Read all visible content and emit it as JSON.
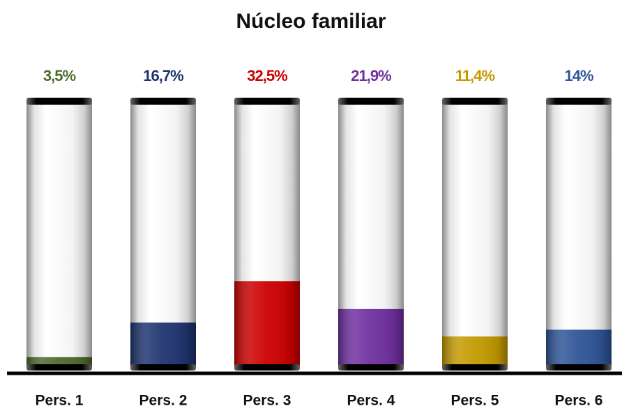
{
  "chart_data": {
    "type": "bar",
    "title": "Núcleo familiar",
    "categories": [
      "Pers. 1",
      "Pers. 2",
      "Pers. 3",
      "Pers. 4",
      "Pers. 5",
      "Pers. 6"
    ],
    "values": [
      3.5,
      16.7,
      32.5,
      21.9,
      11.4,
      14
    ],
    "value_labels": [
      "3,5%",
      "16,7%",
      "32,5%",
      "21,9%",
      "11,4%",
      "14%"
    ],
    "colors": [
      "#4e6b2e",
      "#1f3470",
      "#cc0000",
      "#7030a0",
      "#c49a00",
      "#2f5597"
    ],
    "ylim": [
      0,
      100
    ]
  }
}
